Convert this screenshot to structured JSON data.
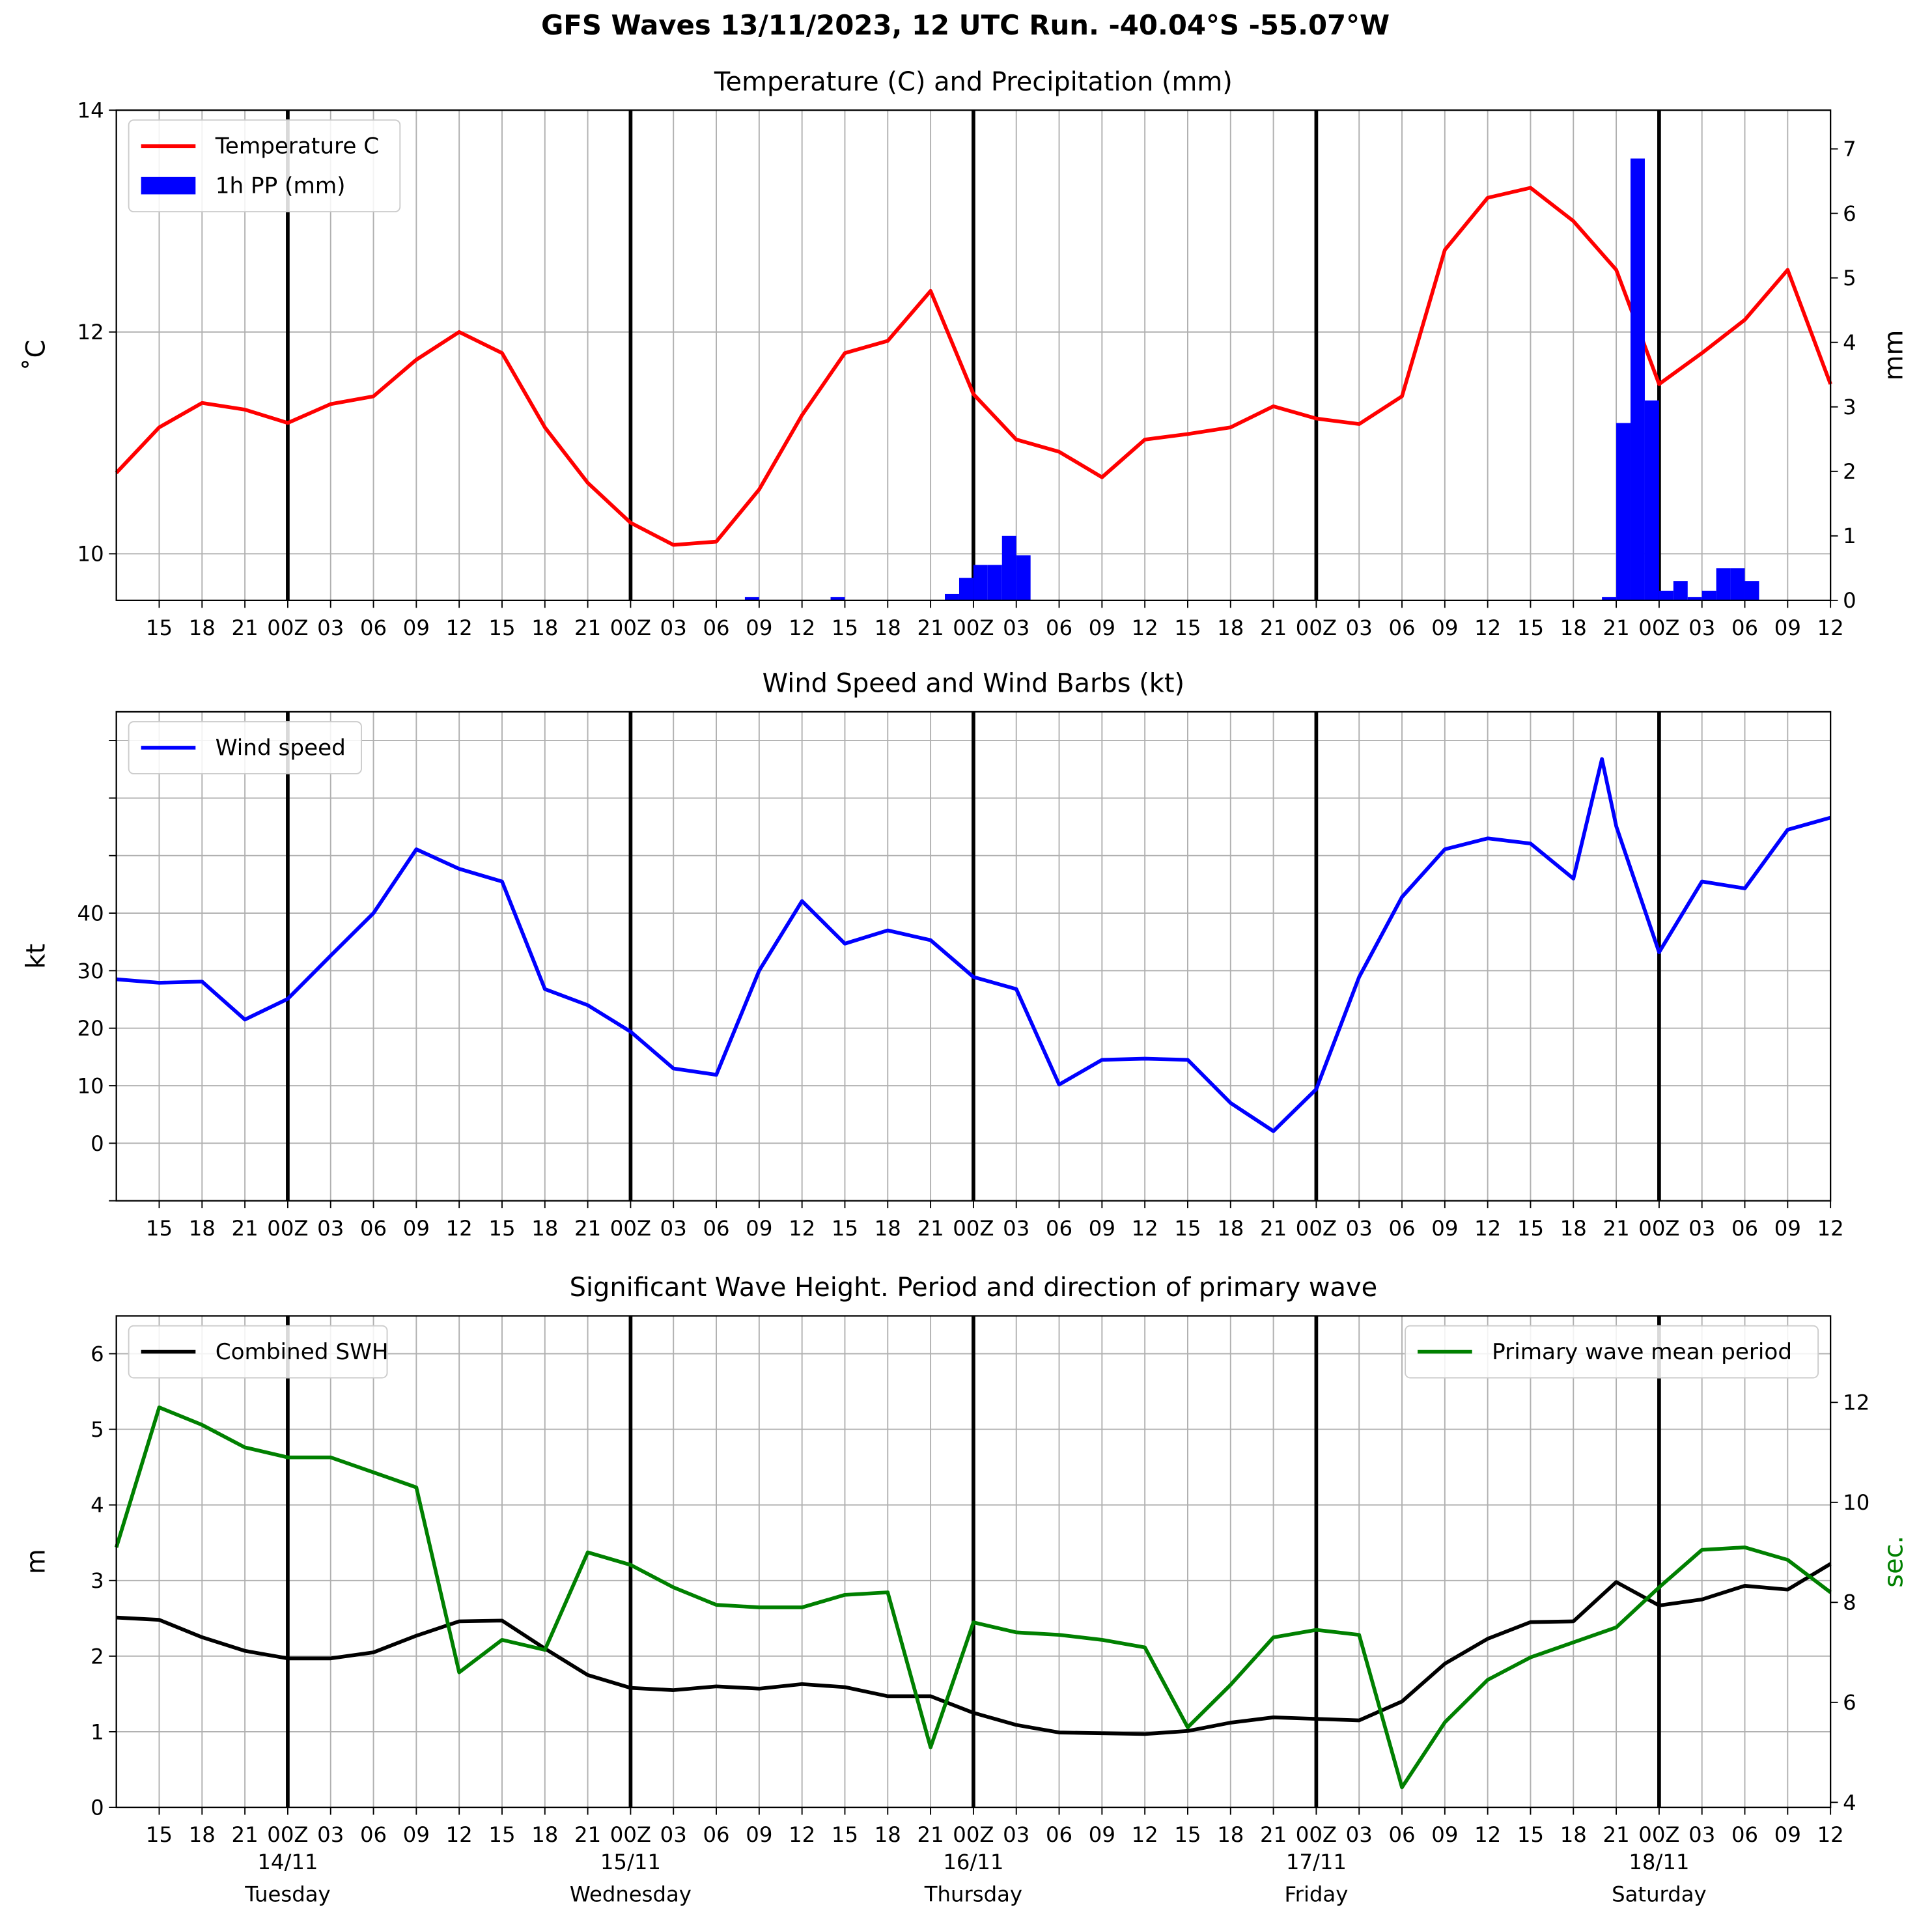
{
  "title": "GFS Waves 13/11/2023, 12 UTC Run. -40.04°S -55.07°W",
  "chart_data": [
    {
      "type": "line",
      "title": "Temperature (C) and Precipitation (mm)",
      "ylabel": "˚C",
      "y2label": "mm",
      "legend": "upper left",
      "grid": true,
      "xlim": [
        0,
        120
      ],
      "ylim": [
        9.58,
        14
      ],
      "yticks": [
        10,
        12,
        14
      ],
      "y2lim": [
        0,
        7.6
      ],
      "y2ticks": [
        0,
        1,
        2,
        3,
        4,
        5,
        6,
        7
      ],
      "day_lines": [
        12,
        36,
        60,
        84,
        108
      ],
      "xticks": [
        {
          "value": 3,
          "label": "15"
        },
        {
          "value": 6,
          "label": "18"
        },
        {
          "value": 9,
          "label": "21"
        },
        {
          "value": 12,
          "label": "00Z"
        },
        {
          "value": 15,
          "label": "03"
        },
        {
          "value": 18,
          "label": "06"
        },
        {
          "value": 21,
          "label": "09"
        },
        {
          "value": 24,
          "label": "12"
        },
        {
          "value": 27,
          "label": "15"
        },
        {
          "value": 30,
          "label": "18"
        },
        {
          "value": 33,
          "label": "21"
        },
        {
          "value": 36,
          "label": "00Z"
        },
        {
          "value": 39,
          "label": "03"
        },
        {
          "value": 42,
          "label": "06"
        },
        {
          "value": 45,
          "label": "09"
        },
        {
          "value": 48,
          "label": "12"
        },
        {
          "value": 51,
          "label": "15"
        },
        {
          "value": 54,
          "label": "18"
        },
        {
          "value": 57,
          "label": "21"
        },
        {
          "value": 60,
          "label": "00Z"
        },
        {
          "value": 63,
          "label": "03"
        },
        {
          "value": 66,
          "label": "06"
        },
        {
          "value": 69,
          "label": "09"
        },
        {
          "value": 72,
          "label": "12"
        },
        {
          "value": 75,
          "label": "15"
        },
        {
          "value": 78,
          "label": "18"
        },
        {
          "value": 81,
          "label": "21"
        },
        {
          "value": 84,
          "label": "00Z"
        },
        {
          "value": 87,
          "label": "03"
        },
        {
          "value": 90,
          "label": "06"
        },
        {
          "value": 93,
          "label": "09"
        },
        {
          "value": 96,
          "label": "12"
        },
        {
          "value": 99,
          "label": "15"
        },
        {
          "value": 102,
          "label": "18"
        },
        {
          "value": 105,
          "label": "21"
        },
        {
          "value": 108,
          "label": "00Z"
        },
        {
          "value": 111,
          "label": "03"
        },
        {
          "value": 114,
          "label": "06"
        },
        {
          "value": 117,
          "label": "09"
        },
        {
          "value": 120,
          "label": "12"
        }
      ],
      "series": [
        {
          "name": "Temperature C",
          "color": "#ff0000",
          "x": [
            0,
            3,
            6,
            9,
            12,
            15,
            18,
            21,
            24,
            27,
            30,
            33,
            36,
            39,
            42,
            45,
            48,
            51,
            54,
            57,
            60,
            63,
            66,
            69,
            72,
            75,
            78,
            81,
            84,
            87,
            90,
            93,
            96,
            99,
            102,
            105,
            108,
            111,
            114,
            117,
            120
          ],
          "values": [
            10.73,
            11.14,
            11.36,
            11.3,
            11.18,
            11.35,
            11.42,
            11.75,
            12.0,
            11.81,
            11.14,
            10.64,
            10.28,
            10.08,
            10.11,
            10.58,
            11.25,
            11.81,
            11.92,
            12.37,
            11.44,
            11.03,
            10.92,
            10.69,
            11.03,
            11.08,
            11.14,
            11.33,
            11.22,
            11.17,
            11.42,
            12.74,
            13.21,
            13.3,
            13.0,
            12.56,
            11.53,
            11.81,
            12.11,
            12.56,
            11.53
          ]
        },
        {
          "name": "1h PP (mm)",
          "color": "#0000ff",
          "type": "bar",
          "axis": "y2",
          "x": [
            44,
            50,
            58,
            59,
            60,
            61,
            62,
            63,
            104,
            105,
            106,
            107,
            108,
            109,
            110,
            111,
            112,
            113,
            114
          ],
          "values": [
            0.05,
            0.05,
            0.1,
            0.35,
            0.55,
            0.55,
            1.0,
            0.7,
            0.05,
            2.75,
            6.85,
            3.1,
            0.15,
            0.3,
            0.05,
            0.15,
            0.5,
            0.5,
            0.3
          ]
        }
      ]
    },
    {
      "type": "line",
      "title": "Wind Speed and Wind Barbs (kt)",
      "ylabel": "kt",
      "legend": "upper left",
      "grid": true,
      "xlim": [
        0,
        120
      ],
      "ylim": [
        -10,
        75
      ],
      "yticks": [
        0,
        10,
        20,
        30,
        40
      ],
      "yminor_ticks": [
        -10,
        50,
        60,
        70
      ],
      "day_lines": [
        12,
        36,
        60,
        84,
        108
      ],
      "xticks": [
        {
          "value": 3,
          "label": "15"
        },
        {
          "value": 6,
          "label": "18"
        },
        {
          "value": 9,
          "label": "21"
        },
        {
          "value": 12,
          "label": "00Z"
        },
        {
          "value": 15,
          "label": "03"
        },
        {
          "value": 18,
          "label": "06"
        },
        {
          "value": 21,
          "label": "09"
        },
        {
          "value": 24,
          "label": "12"
        },
        {
          "value": 27,
          "label": "15"
        },
        {
          "value": 30,
          "label": "18"
        },
        {
          "value": 33,
          "label": "21"
        },
        {
          "value": 36,
          "label": "00Z"
        },
        {
          "value": 39,
          "label": "03"
        },
        {
          "value": 42,
          "label": "06"
        },
        {
          "value": 45,
          "label": "09"
        },
        {
          "value": 48,
          "label": "12"
        },
        {
          "value": 51,
          "label": "15"
        },
        {
          "value": 54,
          "label": "18"
        },
        {
          "value": 57,
          "label": "21"
        },
        {
          "value": 60,
          "label": "00Z"
        },
        {
          "value": 63,
          "label": "03"
        },
        {
          "value": 66,
          "label": "06"
        },
        {
          "value": 69,
          "label": "09"
        },
        {
          "value": 72,
          "label": "12"
        },
        {
          "value": 75,
          "label": "15"
        },
        {
          "value": 78,
          "label": "18"
        },
        {
          "value": 81,
          "label": "21"
        },
        {
          "value": 84,
          "label": "00Z"
        },
        {
          "value": 87,
          "label": "03"
        },
        {
          "value": 90,
          "label": "06"
        },
        {
          "value": 93,
          "label": "09"
        },
        {
          "value": 96,
          "label": "12"
        },
        {
          "value": 99,
          "label": "15"
        },
        {
          "value": 102,
          "label": "18"
        },
        {
          "value": 105,
          "label": "21"
        },
        {
          "value": 108,
          "label": "00Z"
        },
        {
          "value": 111,
          "label": "03"
        },
        {
          "value": 114,
          "label": "06"
        },
        {
          "value": 117,
          "label": "09"
        },
        {
          "value": 120,
          "label": "12"
        }
      ],
      "series": [
        {
          "name": "Wind speed",
          "color": "#0000ff",
          "x": [
            0,
            3,
            6,
            9,
            12,
            15,
            18,
            21,
            24,
            27,
            30,
            33,
            36,
            39,
            42,
            45,
            48,
            51,
            54,
            57,
            60,
            63,
            66,
            69,
            72,
            75,
            78,
            81,
            84,
            87,
            90,
            93,
            96,
            99,
            102,
            104,
            105,
            108,
            111,
            114,
            117,
            120
          ],
          "values": [
            28.5,
            27.9,
            28.1,
            21.5,
            25.1,
            32.6,
            40,
            51.1,
            47.7,
            45.5,
            26.8,
            24,
            19.4,
            13,
            11.9,
            30,
            42.1,
            34.7,
            37,
            35.3,
            28.9,
            26.8,
            10.2,
            14.5,
            14.7,
            14.5,
            7,
            2.1,
            9.4,
            28.9,
            42.8,
            51.1,
            53,
            52.1,
            46,
            66.8,
            55.1,
            33.2,
            45.5,
            44.3,
            54.5,
            56.6
          ]
        }
      ]
    },
    {
      "type": "line",
      "title": "Significant Wave Height. Period and direction of primary wave",
      "ylabel": "m",
      "y2label": "sec.",
      "y2label_color": "#008000",
      "legend": "upper left",
      "grid": true,
      "xlim": [
        0,
        120
      ],
      "ylim": [
        0,
        6.5
      ],
      "yticks": [
        0,
        1,
        2,
        3,
        4,
        5,
        6
      ],
      "y2lim": [
        3.9,
        13.73
      ],
      "y2ticks": [
        4,
        6,
        8,
        10,
        12
      ],
      "day_lines": [
        12,
        36,
        60,
        84,
        108
      ],
      "day_labels": [
        {
          "x": 12,
          "date": "14/11",
          "day": "Tuesday"
        },
        {
          "x": 36,
          "date": "15/11",
          "day": "Wednesday"
        },
        {
          "x": 60,
          "date": "16/11",
          "day": "Thursday"
        },
        {
          "x": 84,
          "date": "17/11",
          "day": "Friday"
        },
        {
          "x": 108,
          "date": "18/11",
          "day": "Saturday"
        }
      ],
      "xticks": [
        {
          "value": 3,
          "label": "15"
        },
        {
          "value": 6,
          "label": "18"
        },
        {
          "value": 9,
          "label": "21"
        },
        {
          "value": 12,
          "label": "00Z"
        },
        {
          "value": 15,
          "label": "03"
        },
        {
          "value": 18,
          "label": "06"
        },
        {
          "value": 21,
          "label": "09"
        },
        {
          "value": 24,
          "label": "12"
        },
        {
          "value": 27,
          "label": "15"
        },
        {
          "value": 30,
          "label": "18"
        },
        {
          "value": 33,
          "label": "21"
        },
        {
          "value": 36,
          "label": "00Z"
        },
        {
          "value": 39,
          "label": "03"
        },
        {
          "value": 42,
          "label": "06"
        },
        {
          "value": 45,
          "label": "09"
        },
        {
          "value": 48,
          "label": "12"
        },
        {
          "value": 51,
          "label": "15"
        },
        {
          "value": 54,
          "label": "18"
        },
        {
          "value": 57,
          "label": "21"
        },
        {
          "value": 60,
          "label": "00Z"
        },
        {
          "value": 63,
          "label": "03"
        },
        {
          "value": 66,
          "label": "06"
        },
        {
          "value": 69,
          "label": "09"
        },
        {
          "value": 72,
          "label": "12"
        },
        {
          "value": 75,
          "label": "15"
        },
        {
          "value": 78,
          "label": "18"
        },
        {
          "value": 81,
          "label": "21"
        },
        {
          "value": 84,
          "label": "00Z"
        },
        {
          "value": 87,
          "label": "03"
        },
        {
          "value": 90,
          "label": "06"
        },
        {
          "value": 93,
          "label": "09"
        },
        {
          "value": 96,
          "label": "12"
        },
        {
          "value": 99,
          "label": "15"
        },
        {
          "value": 102,
          "label": "18"
        },
        {
          "value": 105,
          "label": "21"
        },
        {
          "value": 108,
          "label": "00Z"
        },
        {
          "value": 111,
          "label": "03"
        },
        {
          "value": 114,
          "label": "06"
        },
        {
          "value": 117,
          "label": "09"
        },
        {
          "value": 120,
          "label": "12"
        }
      ],
      "series": [
        {
          "name": "Combined SWH",
          "color": "#000000",
          "x": [
            0,
            3,
            6,
            9,
            12,
            15,
            18,
            21,
            24,
            27,
            30,
            33,
            36,
            39,
            42,
            45,
            48,
            51,
            54,
            57,
            60,
            63,
            66,
            69,
            72,
            75,
            78,
            81,
            84,
            87,
            90,
            93,
            96,
            99,
            102,
            105,
            108,
            111,
            114,
            117,
            120
          ],
          "values": [
            2.51,
            2.48,
            2.25,
            2.07,
            1.97,
            1.97,
            2.05,
            2.27,
            2.46,
            2.47,
            2.1,
            1.75,
            1.58,
            1.55,
            1.6,
            1.57,
            1.63,
            1.59,
            1.47,
            1.47,
            1.25,
            1.09,
            0.99,
            0.98,
            0.97,
            1.01,
            1.12,
            1.19,
            1.17,
            1.15,
            1.4,
            1.9,
            2.23,
            2.45,
            2.46,
            2.98,
            2.67,
            2.75,
            2.93,
            2.88,
            3.22
          ]
        },
        {
          "name": "Primary wave mean period",
          "color": "#008000",
          "axis": "y2",
          "legend": "upper right",
          "x": [
            0,
            3,
            6,
            9,
            12,
            15,
            18,
            21,
            24,
            27,
            30,
            33,
            36,
            39,
            42,
            45,
            48,
            51,
            54,
            57,
            60,
            63,
            66,
            69,
            72,
            75,
            78,
            81,
            84,
            87,
            90,
            93,
            96,
            99,
            102,
            105,
            108,
            111,
            114,
            117,
            120
          ],
          "values": [
            9.1,
            11.9,
            11.55,
            11.1,
            10.9,
            10.9,
            10.6,
            10.3,
            6.6,
            7.25,
            7.05,
            9.0,
            8.75,
            8.3,
            7.95,
            7.9,
            7.9,
            8.15,
            8.2,
            5.1,
            7.6,
            7.4,
            7.35,
            7.25,
            7.1,
            5.5,
            6.35,
            7.3,
            7.45,
            7.35,
            4.3,
            5.6,
            6.45,
            6.9,
            7.2,
            7.5,
            8.3,
            9.05,
            9.1,
            8.85,
            8.2
          ]
        }
      ]
    }
  ]
}
